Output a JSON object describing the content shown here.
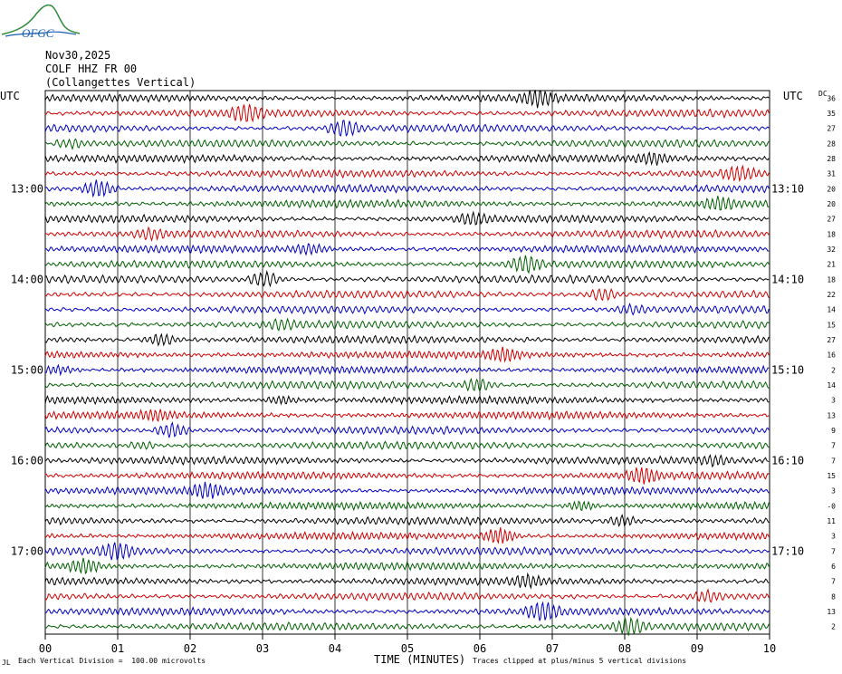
{
  "logo": {
    "text": "OFGC"
  },
  "header": {
    "date": "Nov30,2025",
    "station": "COLF HHZ FR 00",
    "location": "(Collangettes Vertical)"
  },
  "left_axis_label": "UTC",
  "right_axis_label": "UTC",
  "dc_label": "DC",
  "footer": {
    "note_left": "Each Vertical Division =  100.00 microvolts",
    "xlabel": "TIME (MINUTES)",
    "note_right": "Traces clipped at plus/minus 5 vertical divisions",
    "corner_mark": "JL"
  },
  "chart_data": {
    "type": "line",
    "title": "",
    "xlabel": "TIME (MINUTES)",
    "ylabel": "",
    "xlim": [
      0,
      10
    ],
    "x_ticks": [
      "00",
      "01",
      "02",
      "03",
      "04",
      "05",
      "06",
      "07",
      "08",
      "09",
      "10"
    ],
    "grid": true,
    "trace_colors": [
      "#000000",
      "#d00000",
      "#0000c0",
      "#006000"
    ],
    "left_hour_labels": [
      {
        "row": 6,
        "label": "13:00"
      },
      {
        "row": 12,
        "label": "14:00"
      },
      {
        "row": 18,
        "label": "15:00"
      },
      {
        "row": 24,
        "label": "16:00"
      },
      {
        "row": 30,
        "label": "17:00"
      }
    ],
    "right_hour_labels": [
      {
        "row": 6,
        "label": "13:10"
      },
      {
        "row": 12,
        "label": "14:10"
      },
      {
        "row": 18,
        "label": "15:10"
      },
      {
        "row": 24,
        "label": "16:10"
      },
      {
        "row": 30,
        "label": "17:10"
      }
    ],
    "dc_offsets": [
      "36",
      "35",
      "27",
      "28",
      "28",
      "31",
      "20",
      "20",
      "27",
      "18",
      "32",
      "21",
      "18",
      "22",
      "14",
      "15",
      "27",
      "16",
      "2",
      "14",
      "3",
      "13",
      "9",
      "7",
      "7",
      "15",
      "3",
      "-0",
      "11",
      "3",
      "7",
      "6",
      "7",
      "8",
      "13",
      "2"
    ]
  }
}
